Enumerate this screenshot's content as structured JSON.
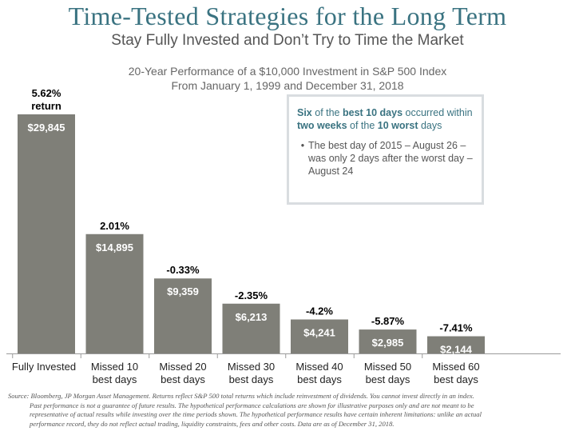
{
  "header": {
    "title": "Time-Tested Strategies for the Long Term",
    "subtitle": "Stay Fully Invested and Don’t Try to Time the Market"
  },
  "chart_data": {
    "type": "bar",
    "title": "20-Year Performance of a $10,000 Investment in S&P 500 Index",
    "subtitle": "From January 1, 1999 and December 31, 2018",
    "categories": [
      "Fully Invested",
      "Missed 10 best days",
      "Missed 20 best days",
      "Missed 30 best days",
      "Missed 40 best days",
      "Missed 50 best days",
      "Missed 60 best days"
    ],
    "category_lines": [
      [
        "Fully Invested"
      ],
      [
        "Missed 10",
        "best days"
      ],
      [
        "Missed 20",
        "best days"
      ],
      [
        "Missed 30",
        "best days"
      ],
      [
        "Missed 40",
        "best days"
      ],
      [
        "Missed 50",
        "best days"
      ],
      [
        "Missed 60",
        "best days"
      ]
    ],
    "values": [
      29845,
      14895,
      9359,
      6213,
      4241,
      2985,
      2144
    ],
    "value_labels": [
      "$29,845",
      "$14,895",
      "$9,359",
      "$6,213",
      "$4,241",
      "$2,985",
      "$2,144"
    ],
    "returns": [
      "5.62%",
      "2.01%",
      "-0.33%",
      "-2.35%",
      "-4.2%",
      "-5.87%",
      "-7.41%"
    ],
    "first_return_suffix": "return",
    "ylim": [
      0,
      29845
    ],
    "bar_color": "#7f7f78",
    "grid": false,
    "xlabel": "",
    "ylabel": ""
  },
  "callout": {
    "headline_parts": [
      "Six",
      " of the ",
      "best 10 days",
      " occurred within ",
      "two weeks",
      " of the ",
      "10 worst",
      " days"
    ],
    "bullet": "The best day of 2015 – August 26 – was only 2 days after the worst day – August 24"
  },
  "source": {
    "line1": "Source:  Bloomberg, JP Morgan Asset Management. Returns reflect S&P 500 total returns which include reinvestment of dividends. You cannot invest directly in an index.",
    "line2": "Past performance is not a guarantee of future results. The hypothetical performance calculations are shown for illustrative purposes only and are not meant to be",
    "line3": "representative of actual results while investing over the time periods shown. The hypothetical performance results have certain inherent limitations: unlike an actual",
    "line4": "performance record, they do not reflect actual trading, liquidity constraints, fees and other costs. Data are as of December 31, 2018."
  }
}
